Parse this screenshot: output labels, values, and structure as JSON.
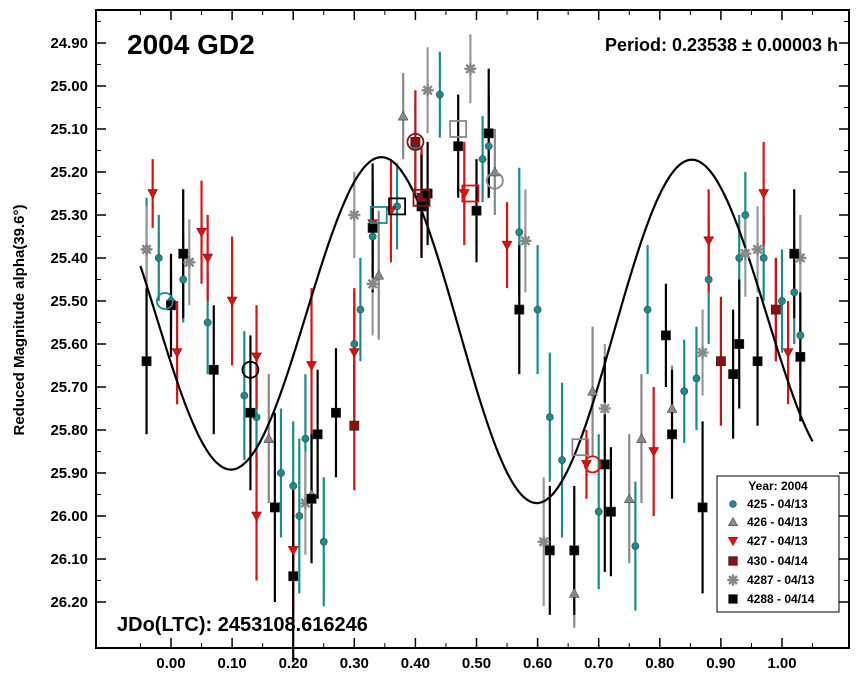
{
  "chart_data": {
    "type": "scatter",
    "title": "2004 GD2",
    "period_label": "Period: 0.23538 ± 0.00003 h",
    "epoch_label": "JDo(LTC): 2453108.616246",
    "ylabel": "Reduced Magnitude alpha(39.6°)",
    "xlabel": "",
    "xlim": [
      -0.1,
      1.1
    ],
    "ylim": [
      26.3,
      24.85
    ],
    "y_inverted": true,
    "x_ticks": [
      "0.00",
      "0.10",
      "0.20",
      "0.30",
      "0.40",
      "0.50",
      "0.60",
      "0.70",
      "0.80",
      "0.90",
      "1.00"
    ],
    "y_ticks": [
      "24.90",
      "25.00",
      "25.10",
      "25.20",
      "25.30",
      "25.40",
      "25.50",
      "25.60",
      "25.70",
      "25.80",
      "25.90",
      "26.00",
      "26.10",
      "26.20"
    ],
    "grid": false,
    "legend": {
      "placement": "bottom-right",
      "title": "Year: 2004",
      "entries": [
        "425 - 04/13",
        "426 - 04/13",
        "427 - 04/13",
        "430 - 04/14",
        "4287 - 04/13",
        "4288 - 04/14"
      ]
    },
    "fit_curve": {
      "mean": 25.55,
      "terms": [
        {
          "type": "cos",
          "harmonic": 1,
          "coef": -0.03
        },
        {
          "type": "sin",
          "harmonic": 1,
          "coef": -0.025
        },
        {
          "type": "cos",
          "harmonic": 2,
          "coef": 0.125
        },
        {
          "type": "sin",
          "harmonic": 2,
          "coef": 0.36
        }
      ],
      "x_range": [
        -0.05,
        1.05
      ]
    },
    "series": [
      {
        "name": "425 - 04/13",
        "marker": "circle",
        "color": "#1a8c8c",
        "points": [
          {
            "x": -0.04,
            "y": 25.38,
            "err": 0.12
          },
          {
            "x": -0.02,
            "y": 25.4,
            "err": 0.1
          },
          {
            "x": 0.0,
            "y": 25.5,
            "err": 0.08
          },
          {
            "x": 0.02,
            "y": 25.45,
            "err": 0.1
          },
          {
            "x": 0.06,
            "y": 25.55,
            "err": 0.12
          },
          {
            "x": 0.12,
            "y": 25.72,
            "err": 0.15
          },
          {
            "x": 0.14,
            "y": 25.77,
            "err": 0.12
          },
          {
            "x": 0.18,
            "y": 25.9,
            "err": 0.15
          },
          {
            "x": 0.2,
            "y": 25.93,
            "err": 0.15
          },
          {
            "x": 0.21,
            "y": 26.0,
            "err": 0.18
          },
          {
            "x": 0.22,
            "y": 25.82,
            "err": 0.15
          },
          {
            "x": 0.25,
            "y": 26.06,
            "err": 0.15
          },
          {
            "x": 0.3,
            "y": 25.6,
            "err": 0.12
          },
          {
            "x": 0.31,
            "y": 25.52,
            "err": 0.12
          },
          {
            "x": 0.33,
            "y": 25.35,
            "err": 0.1
          },
          {
            "x": 0.37,
            "y": 25.28,
            "err": 0.1
          },
          {
            "x": 0.4,
            "y": 25.14,
            "err": 0.1
          },
          {
            "x": 0.44,
            "y": 25.02,
            "err": 0.1
          },
          {
            "x": 0.51,
            "y": 25.17,
            "err": 0.1
          },
          {
            "x": 0.52,
            "y": 25.14,
            "err": 0.12
          },
          {
            "x": 0.57,
            "y": 25.34,
            "err": 0.15
          },
          {
            "x": 0.6,
            "y": 25.52,
            "err": 0.15
          },
          {
            "x": 0.62,
            "y": 25.77,
            "err": 0.15
          },
          {
            "x": 0.64,
            "y": 25.87,
            "err": 0.18
          },
          {
            "x": 0.7,
            "y": 25.99,
            "err": 0.18
          },
          {
            "x": 0.76,
            "y": 26.07,
            "err": 0.15
          },
          {
            "x": 0.78,
            "y": 25.52,
            "err": 0.15
          },
          {
            "x": 0.84,
            "y": 25.71,
            "err": 0.12
          },
          {
            "x": 0.86,
            "y": 25.68,
            "err": 0.12
          },
          {
            "x": 0.88,
            "y": 25.45,
            "err": 0.15
          },
          {
            "x": 0.93,
            "y": 25.4,
            "err": 0.1
          },
          {
            "x": 0.94,
            "y": 25.3,
            "err": 0.1
          },
          {
            "x": 0.97,
            "y": 25.4,
            "err": 0.1
          },
          {
            "x": 1.0,
            "y": 25.5,
            "err": 0.12
          },
          {
            "x": 1.02,
            "y": 25.48,
            "err": 0.12
          },
          {
            "x": 1.03,
            "y": 25.58,
            "err": 0.1
          }
        ]
      },
      {
        "name": "426 - 04/13",
        "marker": "triangle-up",
        "color": "#888888",
        "points": [
          {
            "x": 0.16,
            "y": 25.82,
            "err": 0.15
          },
          {
            "x": 0.23,
            "y": 25.95,
            "err": 0.15
          },
          {
            "x": 0.34,
            "y": 25.44,
            "err": 0.15
          },
          {
            "x": 0.38,
            "y": 25.07,
            "err": 0.1
          },
          {
            "x": 0.53,
            "y": 25.2,
            "err": 0.1
          },
          {
            "x": 0.66,
            "y": 26.18,
            "err": 0.08
          },
          {
            "x": 0.69,
            "y": 25.71,
            "err": 0.15
          },
          {
            "x": 0.75,
            "y": 25.96,
            "err": 0.15
          },
          {
            "x": 0.77,
            "y": 25.82,
            "err": 0.15
          },
          {
            "x": 0.82,
            "y": 25.75,
            "err": 0.1
          }
        ]
      },
      {
        "name": "427 - 04/13",
        "marker": "triangle-down",
        "color": "#dd1111",
        "points": [
          {
            "x": -0.03,
            "y": 25.25,
            "err": 0.08
          },
          {
            "x": 0.01,
            "y": 25.62,
            "err": 0.12
          },
          {
            "x": 0.05,
            "y": 25.34,
            "err": 0.12
          },
          {
            "x": 0.06,
            "y": 25.4,
            "err": 0.1
          },
          {
            "x": 0.1,
            "y": 25.5,
            "err": 0.15
          },
          {
            "x": 0.14,
            "y": 25.63,
            "err": 0.12
          },
          {
            "x": 0.14,
            "y": 26.0,
            "err": 0.15
          },
          {
            "x": 0.2,
            "y": 26.08,
            "err": 0.15
          },
          {
            "x": 0.23,
            "y": 25.65,
            "err": 0.18
          },
          {
            "x": 0.3,
            "y": 25.62,
            "err": 0.15
          },
          {
            "x": 0.33,
            "y": 25.32,
            "err": 0.1
          },
          {
            "x": 0.36,
            "y": 25.29,
            "err": 0.12
          },
          {
            "x": 0.41,
            "y": 25.27,
            "err": 0.12
          },
          {
            "x": 0.48,
            "y": 25.25,
            "err": 0.12
          },
          {
            "x": 0.55,
            "y": 25.37,
            "err": 0.1
          },
          {
            "x": 0.68,
            "y": 25.88,
            "err": 0.08
          },
          {
            "x": 0.79,
            "y": 25.85,
            "err": 0.15
          },
          {
            "x": 0.88,
            "y": 25.36,
            "err": 0.12
          },
          {
            "x": 0.97,
            "y": 25.25,
            "err": 0.12
          },
          {
            "x": 0.99,
            "y": 25.52,
            "err": 0.12
          },
          {
            "x": 1.01,
            "y": 25.62,
            "err": 0.12
          }
        ]
      },
      {
        "name": "430 - 04/14",
        "marker": "square",
        "color": "#8b1010",
        "points": [
          {
            "x": 0.3,
            "y": 25.79,
            "err": 0.15
          },
          {
            "x": 0.4,
            "y": 25.13,
            "err": 0.12
          },
          {
            "x": 0.41,
            "y": 25.26,
            "err": 0.12
          },
          {
            "x": 0.9,
            "y": 25.64,
            "err": 0.15
          },
          {
            "x": 0.99,
            "y": 25.52,
            "err": 0.12
          }
        ]
      },
      {
        "name": "4287 - 04/13",
        "marker": "asterisk",
        "color": "#888888",
        "points": [
          {
            "x": -0.04,
            "y": 25.38,
            "err": 0.1
          },
          {
            "x": 0.03,
            "y": 25.41,
            "err": 0.1
          },
          {
            "x": 0.22,
            "y": 25.97,
            "err": 0.12
          },
          {
            "x": 0.3,
            "y": 25.3,
            "err": 0.1
          },
          {
            "x": 0.33,
            "y": 25.46,
            "err": 0.12
          },
          {
            "x": 0.42,
            "y": 25.01,
            "err": 0.1
          },
          {
            "x": 0.49,
            "y": 24.96,
            "err": 0.08
          },
          {
            "x": 0.58,
            "y": 25.36,
            "err": 0.12
          },
          {
            "x": 0.61,
            "y": 26.06,
            "err": 0.15
          },
          {
            "x": 0.71,
            "y": 25.75,
            "err": 0.15
          },
          {
            "x": 0.87,
            "y": 25.62,
            "err": 0.1
          },
          {
            "x": 0.94,
            "y": 25.39,
            "err": 0.1
          },
          {
            "x": 0.96,
            "y": 25.38,
            "err": 0.1
          },
          {
            "x": 1.03,
            "y": 25.4,
            "err": 0.1
          }
        ]
      },
      {
        "name": "4288 - 04/14",
        "marker": "square",
        "color": "#000000",
        "points": [
          {
            "x": -0.04,
            "y": 25.64,
            "err": 0.17
          },
          {
            "x": 0.0,
            "y": 25.51,
            "err": 0.12
          },
          {
            "x": 0.02,
            "y": 25.39,
            "err": 0.15
          },
          {
            "x": 0.07,
            "y": 25.66,
            "err": 0.15
          },
          {
            "x": 0.13,
            "y": 25.76,
            "err": 0.18
          },
          {
            "x": 0.17,
            "y": 25.98,
            "err": 0.22
          },
          {
            "x": 0.2,
            "y": 26.14,
            "err": 0.2
          },
          {
            "x": 0.24,
            "y": 25.81,
            "err": 0.15
          },
          {
            "x": 0.23,
            "y": 25.96,
            "err": 0.15
          },
          {
            "x": 0.27,
            "y": 25.76,
            "err": 0.15
          },
          {
            "x": 0.33,
            "y": 25.33,
            "err": 0.15
          },
          {
            "x": 0.41,
            "y": 25.28,
            "err": 0.12
          },
          {
            "x": 0.42,
            "y": 25.25,
            "err": 0.12
          },
          {
            "x": 0.47,
            "y": 25.14,
            "err": 0.12
          },
          {
            "x": 0.5,
            "y": 25.29,
            "err": 0.12
          },
          {
            "x": 0.52,
            "y": 25.11,
            "err": 0.15
          },
          {
            "x": 0.57,
            "y": 25.52,
            "err": 0.15
          },
          {
            "x": 0.62,
            "y": 26.08,
            "err": 0.15
          },
          {
            "x": 0.66,
            "y": 26.08,
            "err": 0.15
          },
          {
            "x": 0.71,
            "y": 25.88,
            "err": 0.25
          },
          {
            "x": 0.72,
            "y": 25.99,
            "err": 0.15
          },
          {
            "x": 0.81,
            "y": 25.58,
            "err": 0.12
          },
          {
            "x": 0.82,
            "y": 25.81,
            "err": 0.15
          },
          {
            "x": 0.87,
            "y": 25.98,
            "err": 0.2
          },
          {
            "x": 0.92,
            "y": 25.67,
            "err": 0.15
          },
          {
            "x": 0.93,
            "y": 25.6,
            "err": 0.15
          },
          {
            "x": 0.96,
            "y": 25.64,
            "err": 0.15
          },
          {
            "x": 1.02,
            "y": 25.39,
            "err": 0.15
          },
          {
            "x": 1.03,
            "y": 25.63,
            "err": 0.15
          }
        ]
      }
    ],
    "highlight_markers": [
      {
        "x": -0.01,
        "y": 25.5,
        "shape": "circle",
        "color": "#1a8c8c"
      },
      {
        "x": 0.13,
        "y": 25.66,
        "shape": "circle",
        "color": "#000000"
      },
      {
        "x": 0.34,
        "y": 25.3,
        "shape": "square",
        "color": "#1a8c8c"
      },
      {
        "x": 0.37,
        "y": 25.28,
        "shape": "square",
        "color": "#000000"
      },
      {
        "x": 0.4,
        "y": 25.13,
        "shape": "circle",
        "color": "#8b1010"
      },
      {
        "x": 0.41,
        "y": 25.26,
        "shape": "square",
        "color": "#8b1010"
      },
      {
        "x": 0.47,
        "y": 25.1,
        "shape": "square",
        "color": "#888888"
      },
      {
        "x": 0.49,
        "y": 25.25,
        "shape": "square",
        "color": "#dd1111"
      },
      {
        "x": 0.53,
        "y": 25.22,
        "shape": "circle",
        "color": "#888888"
      },
      {
        "x": 0.67,
        "y": 25.84,
        "shape": "square",
        "color": "#888888"
      },
      {
        "x": 0.69,
        "y": 25.88,
        "shape": "circle",
        "color": "#dd1111"
      }
    ]
  }
}
